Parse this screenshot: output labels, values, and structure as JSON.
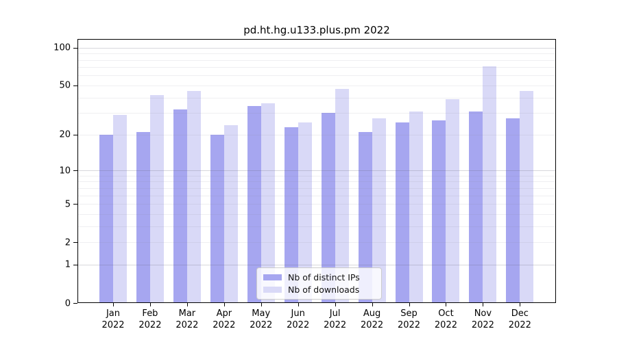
{
  "title": "pd.ht.hg.u133.plus.pm 2022",
  "chart_data": {
    "type": "bar",
    "title": "pd.ht.hg.u133.plus.pm 2022",
    "categories": [
      "Jan 2022",
      "Feb 2022",
      "Mar 2022",
      "Apr 2022",
      "May 2022",
      "Jun 2022",
      "Jul 2022",
      "Aug 2022",
      "Sep 2022",
      "Oct 2022",
      "Nov 2022",
      "Dec 2022"
    ],
    "series": [
      {
        "name": "Nb of distinct IPs",
        "color": "#a6a6f0",
        "values": [
          20,
          21,
          32,
          20,
          34,
          23,
          30,
          21,
          25,
          26,
          31,
          27
        ]
      },
      {
        "name": "Nb of downloads",
        "color": "#d9d9f7",
        "values": [
          29,
          42,
          45,
          24,
          36,
          25,
          47,
          27,
          31,
          39,
          71,
          45
        ]
      }
    ],
    "xlabel": "",
    "ylabel": "",
    "y_scale": "log10(value+1)",
    "y_ticks": [
      0,
      1,
      2,
      5,
      10,
      20,
      50,
      100
    ],
    "y_major_gridlines": [
      1,
      10,
      100
    ],
    "y_minor_gridlines": [
      2,
      3,
      4,
      5,
      6,
      7,
      8,
      9,
      20,
      30,
      40,
      50,
      60,
      70,
      80,
      90
    ],
    "ylim": [
      0,
      116
    ],
    "grid": true,
    "legend_position": "lower center"
  },
  "legend": {
    "items": [
      {
        "label": "Nb of distinct IPs",
        "color": "#a6a6f0"
      },
      {
        "label": "Nb of downloads",
        "color": "#d9d9f7"
      }
    ]
  },
  "colors": {
    "background": "#ffffff",
    "axis": "#000000",
    "major_grid": "#c8c8cd",
    "minor_grid": "#ebebee",
    "distinct_ips_bar": "#a6a6f0",
    "downloads_bar": "#d9d9f7"
  }
}
